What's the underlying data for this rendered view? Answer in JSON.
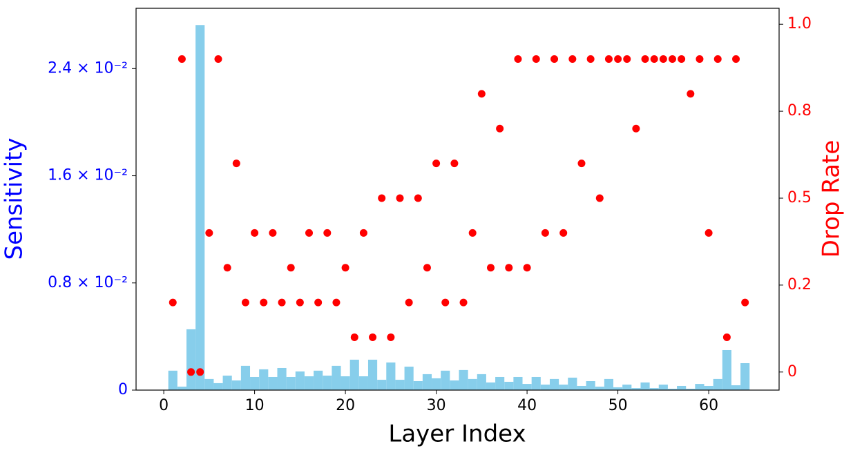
{
  "chart_data": {
    "type": "bar",
    "xlabel": "Layer Index",
    "ylabel": "Sensitivity",
    "y2label": "Drop Rate",
    "ylabel_color": "#0000ff",
    "y2label_color": "#ff0000",
    "x": [
      1,
      2,
      3,
      4,
      5,
      6,
      7,
      8,
      9,
      10,
      11,
      12,
      13,
      14,
      15,
      16,
      17,
      18,
      19,
      20,
      21,
      22,
      23,
      24,
      25,
      26,
      27,
      28,
      29,
      30,
      31,
      32,
      33,
      34,
      35,
      36,
      37,
      38,
      39,
      40,
      41,
      42,
      43,
      44,
      45,
      46,
      47,
      48,
      49,
      50,
      51,
      52,
      53,
      54,
      55,
      56,
      57,
      58,
      59,
      60,
      61,
      62,
      63,
      64
    ],
    "series": [
      {
        "type": "bar",
        "color": "#87ceeb",
        "axis": "y",
        "values": [
          0.00145,
          0.00026,
          0.00454,
          0.02725,
          0.00083,
          0.00052,
          0.00108,
          0.00072,
          0.00181,
          0.00098,
          0.00155,
          0.00098,
          0.00165,
          0.00098,
          0.00139,
          0.00103,
          0.00145,
          0.00108,
          0.00181,
          0.00103,
          0.00227,
          0.00103,
          0.00227,
          0.00077,
          0.00206,
          0.00077,
          0.00175,
          0.00067,
          0.00119,
          0.00088,
          0.00145,
          0.00072,
          0.0015,
          0.00083,
          0.00119,
          0.00057,
          0.00098,
          0.00062,
          0.00098,
          0.00046,
          0.00098,
          0.00041,
          0.00083,
          0.00041,
          0.00093,
          0.00031,
          0.00067,
          0.00026,
          0.00083,
          0.00021,
          0.00041,
          0.00015,
          0.00057,
          0.00015,
          0.00041,
          0.0001,
          0.00031,
          0.0001,
          0.00046,
          0.00031,
          0.00083,
          0.00299,
          0.00036,
          0.00201
        ]
      },
      {
        "type": "scatter",
        "color": "#ff0000",
        "axis": "y2",
        "values": [
          0.2,
          0.9,
          0.0,
          0.0,
          0.4,
          0.9,
          0.3,
          0.6,
          0.2,
          0.4,
          0.2,
          0.4,
          0.2,
          0.3,
          0.2,
          0.4,
          0.2,
          0.4,
          0.2,
          0.3,
          0.1,
          0.4,
          0.1,
          0.5,
          0.1,
          0.5,
          0.2,
          0.5,
          0.3,
          0.6,
          0.2,
          0.6,
          0.2,
          0.4,
          0.8,
          0.3,
          0.7,
          0.3,
          0.9,
          0.3,
          0.9,
          0.4,
          0.9,
          0.4,
          0.9,
          0.6,
          0.9,
          0.5,
          0.9,
          0.9,
          0.9,
          0.7,
          0.9,
          0.9,
          0.9,
          0.9,
          0.9,
          0.8,
          0.9,
          0.4,
          0.9,
          0.1,
          0.9,
          0.2
        ]
      }
    ],
    "xlim": [
      -3.05,
      67.75
    ],
    "xticks": [
      0,
      10,
      20,
      30,
      40,
      50,
      60
    ],
    "ylim": [
      0,
      0.0285
    ],
    "yticks": [
      0,
      {
        "value": 0.008,
        "label": "0.8 × 10⁻²"
      },
      {
        "value": 0.016,
        "label": "1.6 × 10⁻²"
      },
      {
        "value": 0.024,
        "label": "2.4 × 10⁻²"
      }
    ],
    "y2lim": [
      -0.052,
      1.046
    ],
    "y2ticks": [
      0,
      {
        "value": 0.25,
        "label": "0.2"
      },
      0.5,
      {
        "value": 0.75,
        "label": "0.8"
      },
      {
        "value": 1.0,
        "label": "1.0"
      }
    ]
  }
}
